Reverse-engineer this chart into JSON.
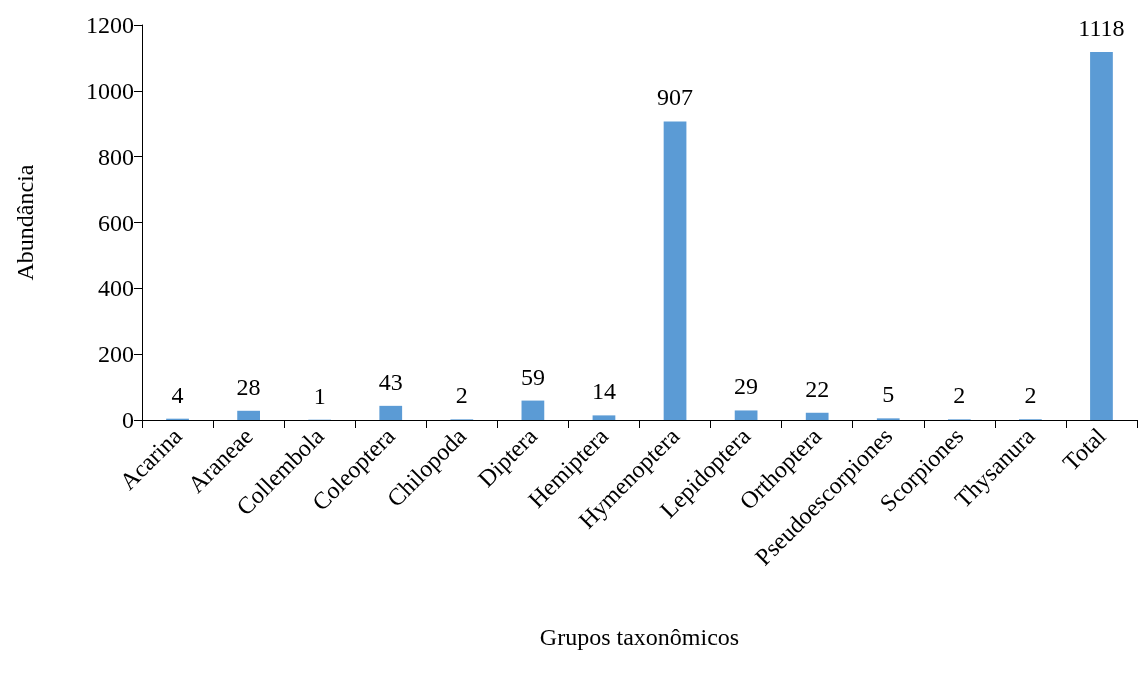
{
  "chart_data": {
    "type": "bar",
    "xlabel": "Grupos taxonômicos",
    "ylabel": "Abundância",
    "categories": [
      "Acarina",
      "Araneae",
      "Collembola",
      "Coleoptera",
      "Chilopoda",
      "Diptera",
      "Hemiptera",
      "Hymenoptera",
      "Lepidoptera",
      "Orthoptera",
      "Pseudoescorpiones",
      "Scorpiones",
      "Thysanura",
      "Total"
    ],
    "values": [
      4,
      28,
      1,
      43,
      2,
      59,
      14,
      907,
      29,
      22,
      5,
      2,
      2,
      1118
    ],
    "color": "#5b9bd5",
    "ylim": [
      0,
      1200
    ],
    "yticks": [
      0,
      200,
      400,
      600,
      800,
      1000,
      1200
    ],
    "data_labels": true,
    "grid": false
  }
}
